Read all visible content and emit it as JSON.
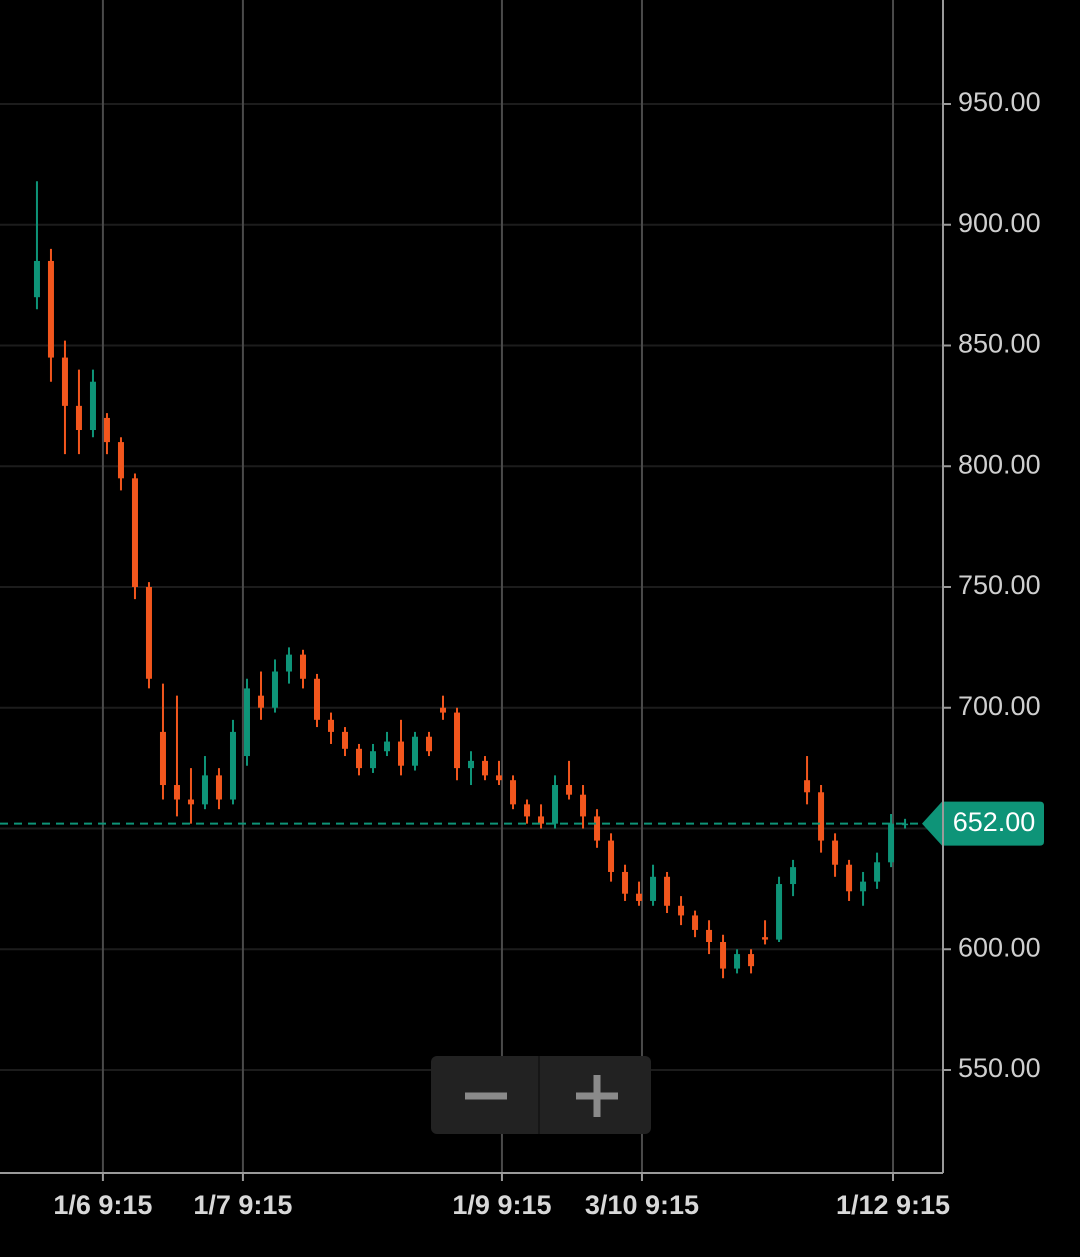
{
  "chart_data": {
    "type": "candlestick",
    "open": [
      870,
      885,
      845,
      825,
      815,
      820,
      810,
      795,
      750,
      690,
      668,
      662,
      660,
      672,
      662,
      680,
      705,
      700,
      715,
      722,
      712,
      695,
      690,
      683,
      675,
      682,
      686,
      676,
      688,
      700,
      698,
      675,
      678,
      672,
      670,
      660,
      655,
      652,
      668,
      664,
      655,
      645,
      632,
      623,
      620,
      630,
      618,
      614,
      608,
      603,
      592,
      598,
      605,
      604,
      627,
      670,
      665,
      645,
      635,
      624,
      628,
      636,
      652
    ],
    "high": [
      918,
      890,
      852,
      840,
      840,
      822,
      812,
      797,
      752,
      710,
      705,
      675,
      680,
      675,
      695,
      712,
      715,
      720,
      725,
      724,
      714,
      698,
      692,
      685,
      685,
      690,
      695,
      690,
      690,
      705,
      700,
      682,
      680,
      678,
      672,
      662,
      660,
      672,
      678,
      668,
      658,
      648,
      635,
      628,
      635,
      632,
      622,
      616,
      612,
      606,
      600,
      600,
      612,
      630,
      637,
      680,
      668,
      648,
      637,
      632,
      640,
      656,
      654
    ],
    "low": [
      865,
      835,
      805,
      805,
      812,
      805,
      790,
      745,
      708,
      662,
      655,
      652,
      658,
      658,
      660,
      676,
      695,
      698,
      710,
      708,
      692,
      685,
      680,
      672,
      673,
      680,
      672,
      674,
      680,
      695,
      670,
      668,
      670,
      668,
      658,
      652,
      650,
      650,
      662,
      650,
      642,
      628,
      620,
      618,
      618,
      615,
      610,
      605,
      598,
      588,
      590,
      590,
      602,
      603,
      622,
      660,
      640,
      630,
      620,
      618,
      625,
      634,
      650
    ],
    "close": [
      885,
      845,
      825,
      815,
      835,
      810,
      795,
      750,
      712,
      668,
      662,
      660,
      672,
      662,
      690,
      708,
      700,
      715,
      722,
      712,
      695,
      690,
      683,
      675,
      682,
      686,
      676,
      688,
      682,
      698,
      675,
      678,
      672,
      670,
      660,
      655,
      652,
      668,
      664,
      655,
      645,
      632,
      623,
      620,
      630,
      618,
      614,
      608,
      603,
      592,
      598,
      593,
      604,
      627,
      634,
      665,
      645,
      635,
      624,
      628,
      636,
      652,
      652
    ],
    "up_color": "#0e9478",
    "down_color": "#f2561d",
    "xlim": [
      -2.64,
      64.71
    ],
    "xticks": [
      {
        "value": 4.71,
        "label": "1/6 9:15"
      },
      {
        "value": 14.71,
        "label": "1/7 9:15"
      },
      {
        "value": 33.21,
        "label": "1/9 9:15"
      },
      {
        "value": 43.21,
        "label": "3/10 9:15"
      },
      {
        "value": 61.14,
        "label": "1/12 9:15"
      }
    ],
    "ylim": [
      507.35,
      993.06
    ],
    "yticks": [
      {
        "value": 550,
        "label": "550.00"
      },
      {
        "value": 600,
        "label": "600.00"
      },
      {
        "value": 650,
        "label": "650.00"
      },
      {
        "value": 700,
        "label": "700.00"
      },
      {
        "value": 750,
        "label": "750.00"
      },
      {
        "value": 800,
        "label": "800.00"
      },
      {
        "value": 850,
        "label": "850.00"
      },
      {
        "value": 900,
        "label": "900.00"
      },
      {
        "value": 950,
        "label": "950.00"
      }
    ],
    "last_price": {
      "value": 652,
      "label": "652.00"
    },
    "grid": true
  }
}
